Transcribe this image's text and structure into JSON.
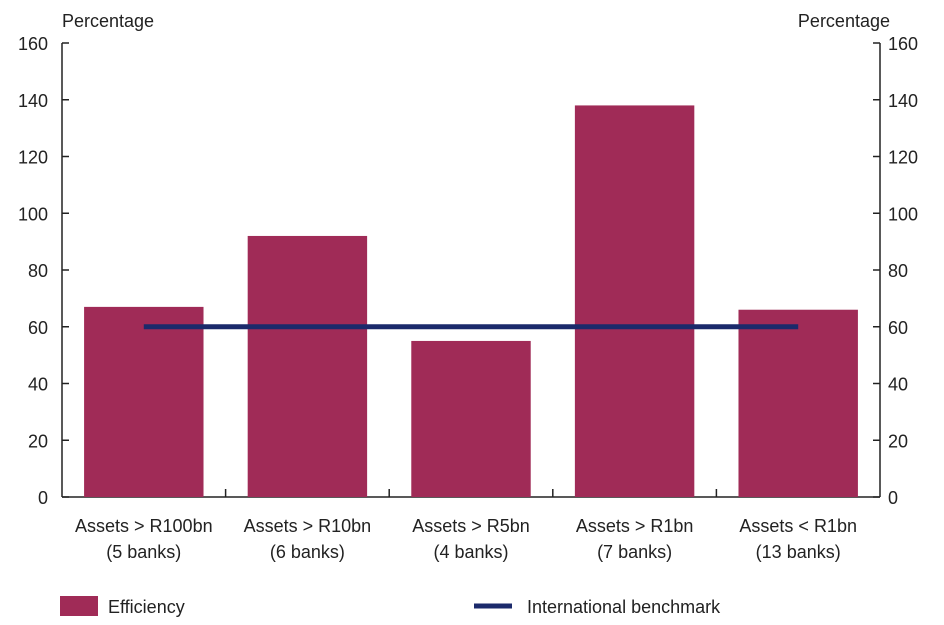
{
  "chart_data": {
    "type": "bar",
    "title": "",
    "y_left_label": "Percentage",
    "y_right_label": "Percentage",
    "ylim": [
      0,
      160
    ],
    "yticks": [
      0,
      20,
      40,
      60,
      80,
      100,
      120,
      140,
      160
    ],
    "categories": [
      [
        "Assets > R100bn",
        "(5 banks)"
      ],
      [
        "Assets > R10bn",
        "(6 banks)"
      ],
      [
        "Assets > R5bn",
        "(4 banks)"
      ],
      [
        "Assets > R1bn",
        "(7 banks)"
      ],
      [
        "Assets < R1bn",
        "(13 banks)"
      ]
    ],
    "series": [
      {
        "name": "Efficiency",
        "kind": "bar",
        "color": "#a02b57",
        "values": [
          67,
          92,
          55,
          138,
          66
        ]
      },
      {
        "name": "International benchmark",
        "kind": "line",
        "color": "#1b2a6b",
        "values": [
          60,
          60,
          60,
          60,
          60
        ]
      }
    ],
    "grid": false,
    "legend_position": "bottom"
  }
}
